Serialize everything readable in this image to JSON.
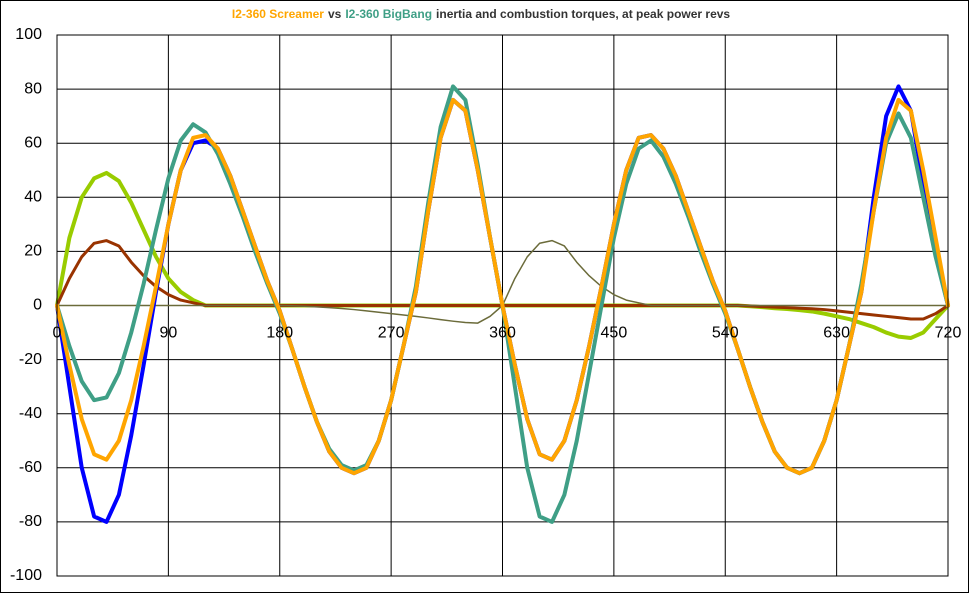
{
  "chart_data": {
    "type": "line",
    "title_parts": [
      {
        "text": "I2-360 Screamer",
        "color": "#ffa500"
      },
      {
        "text": "vs",
        "color": "#333333"
      },
      {
        "text": "I2-360 BigBang",
        "color": "#3f9f86"
      },
      {
        "text": "inertia and combustion torques, at peak power revs",
        "color": "#333333"
      }
    ],
    "x": [
      0,
      10,
      20,
      30,
      40,
      50,
      60,
      70,
      80,
      90,
      100,
      110,
      120,
      130,
      140,
      150,
      160,
      170,
      180,
      190,
      200,
      210,
      220,
      230,
      240,
      250,
      260,
      270,
      280,
      290,
      300,
      310,
      320,
      330,
      340,
      350,
      360,
      370,
      380,
      390,
      400,
      410,
      420,
      430,
      440,
      450,
      460,
      470,
      480,
      490,
      500,
      510,
      520,
      530,
      540,
      550,
      560,
      570,
      580,
      590,
      600,
      610,
      620,
      630,
      640,
      650,
      660,
      670,
      680,
      690,
      700,
      710,
      720
    ],
    "series": [
      {
        "color": "#99cc00",
        "line_width": 4,
        "values": [
          0,
          25,
          40,
          47,
          49,
          46,
          38,
          28,
          18,
          10,
          5,
          2,
          0,
          0,
          0,
          0,
          0,
          0,
          0,
          0,
          0,
          0,
          0,
          0,
          0,
          0,
          0,
          0,
          0,
          0,
          0,
          0,
          0,
          0,
          0,
          0,
          0,
          0,
          0,
          0,
          0,
          0,
          0,
          0,
          0,
          0,
          0,
          0,
          0,
          0,
          0,
          0,
          0,
          0,
          0,
          0,
          -0.3,
          -0.6,
          -1,
          -1.3,
          -1.7,
          -2.2,
          -3,
          -4,
          -5,
          -6.5,
          -8,
          -10,
          -11.5,
          -12,
          -10,
          -5,
          0
        ]
      },
      {
        "color": "#993300",
        "line_width": 3,
        "values": [
          0,
          10,
          18,
          23,
          24,
          22,
          16,
          11,
          7,
          4,
          2,
          1,
          0,
          0,
          0,
          0,
          0,
          0,
          0,
          0,
          0,
          0,
          0,
          0,
          0,
          0,
          0,
          0,
          0,
          0,
          0,
          0,
          0,
          0,
          0,
          0,
          0,
          0,
          0,
          0,
          0,
          0,
          0,
          0,
          0,
          0,
          0,
          0,
          0,
          0,
          0,
          0,
          0,
          0,
          0,
          0,
          -0.2,
          -0.4,
          -0.6,
          -0.8,
          -1,
          -1.2,
          -1.5,
          -2,
          -2.5,
          -3,
          -3.5,
          -4,
          -4.5,
          -5,
          -5,
          -3,
          0
        ]
      },
      {
        "color": "#6b6b3a",
        "line_width": 1.5,
        "values": [
          0,
          0,
          0,
          0,
          0,
          0,
          0,
          0,
          0,
          0,
          0,
          0,
          0,
          0,
          0,
          0,
          0,
          0,
          0,
          -0.1,
          -0.3,
          -0.5,
          -0.8,
          -1.1,
          -1.5,
          -2,
          -2.5,
          -3,
          -3.5,
          -4,
          -4.6,
          -5.2,
          -5.8,
          -6.3,
          -6.5,
          -4,
          0,
          10,
          18,
          23,
          24,
          22,
          16,
          11,
          7,
          4,
          2,
          1,
          0,
          0,
          0,
          0,
          0,
          0,
          0,
          0,
          0,
          0,
          0,
          0,
          0,
          0,
          0,
          0,
          0,
          0,
          0,
          0,
          0,
          0,
          0,
          0,
          0
        ]
      },
      {
        "color": "#0000ff",
        "line_width": 4,
        "values": [
          0,
          -30,
          -60,
          -78,
          -80,
          -70,
          -48,
          -22,
          5,
          30,
          50,
          60,
          61,
          58,
          48,
          35,
          22,
          9,
          -2,
          -16,
          -30,
          -43,
          -54,
          -60,
          -62,
          -60,
          -50,
          -35,
          -15,
          5,
          35,
          62,
          76,
          72,
          50,
          25,
          0,
          -22,
          -42,
          -55,
          -57,
          -50,
          -35,
          -15,
          7,
          30,
          50,
          62,
          63,
          58,
          48,
          35,
          22,
          9,
          -2,
          -16,
          -30,
          -43,
          -54,
          -60,
          -62,
          -60,
          -50,
          -35,
          -15,
          5,
          40,
          70,
          81,
          72,
          45,
          20,
          0
        ]
      },
      {
        "color": "#3f9f86",
        "line_width": 4,
        "values": [
          0,
          -15,
          -28,
          -35,
          -34,
          -25,
          -10,
          8,
          28,
          47,
          61,
          67,
          64,
          56,
          45,
          33,
          20,
          8,
          -3,
          -16,
          -30,
          -43,
          -53,
          -59,
          -61,
          -59,
          -50,
          -35,
          -15,
          7,
          38,
          66,
          81,
          76,
          52,
          25,
          0,
          -30,
          -60,
          -78,
          -80,
          -70,
          -50,
          -25,
          0,
          25,
          45,
          58,
          61,
          55,
          45,
          33,
          20,
          8,
          -3,
          -16,
          -30,
          -43,
          -54,
          -60,
          -62,
          -60,
          -50,
          -35,
          -15,
          8,
          35,
          60,
          71,
          62,
          40,
          18,
          0
        ]
      },
      {
        "color": "#ffa500",
        "line_width": 4,
        "values": [
          0,
          -22,
          -42,
          -55,
          -57,
          -50,
          -35,
          -15,
          7,
          30,
          50,
          62,
          63,
          58,
          48,
          35,
          22,
          9,
          -2,
          -16,
          -30,
          -43,
          -54,
          -60,
          -62,
          -60,
          -50,
          -35,
          -15,
          5,
          35,
          62,
          76,
          72,
          50,
          25,
          0,
          -22,
          -42,
          -55,
          -57,
          -50,
          -35,
          -15,
          7,
          30,
          50,
          62,
          63,
          58,
          48,
          35,
          22,
          9,
          -2,
          -16,
          -30,
          -43,
          -54,
          -60,
          -62,
          -60,
          -50,
          -35,
          -15,
          5,
          35,
          62,
          76,
          72,
          50,
          25,
          0
        ]
      }
    ],
    "xlim": [
      0,
      720
    ],
    "xticks": [
      0,
      90,
      180,
      270,
      360,
      450,
      540,
      630,
      720
    ],
    "ylim": [
      -100,
      100
    ],
    "yticks": [
      -100,
      -80,
      -60,
      -40,
      -20,
      0,
      20,
      40,
      60,
      80,
      100
    ],
    "grid": true,
    "grid_color": "#000000",
    "zero_line_color": "#00ffff"
  }
}
